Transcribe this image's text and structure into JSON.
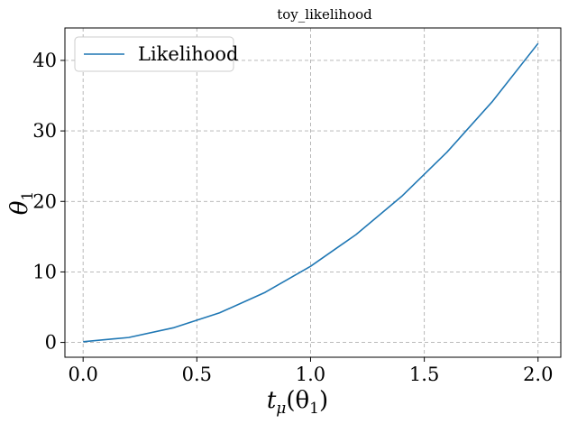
{
  "chart_data": {
    "type": "line",
    "title": "toy_likelihood",
    "xlabel": "t_μ(θ_1)",
    "ylabel": "θ_1",
    "xlabel_parts": {
      "base": "t",
      "sub": "μ",
      "arg_open": "(θ",
      "arg_sub": "1",
      "arg_close": ")"
    },
    "ylabel_parts": {
      "base": "θ",
      "sub": "1"
    },
    "xlim": [
      -0.08,
      2.1
    ],
    "ylim": [
      -2.1,
      44.6
    ],
    "xticks": [
      0.0,
      0.5,
      1.0,
      1.5,
      2.0
    ],
    "xtick_labels": [
      "0.0",
      "0.5",
      "1.0",
      "1.5",
      "2.0"
    ],
    "yticks": [
      0,
      10,
      20,
      30,
      40
    ],
    "ytick_labels": [
      "0",
      "10",
      "20",
      "30",
      "40"
    ],
    "grid": true,
    "grid_style": "dashed",
    "legend_position": "upper-left",
    "series": [
      {
        "name": "Likelihood",
        "color": "#1f77b4",
        "x": [
          0.0,
          0.2,
          0.4,
          0.6,
          0.8,
          1.0,
          1.2,
          1.4,
          1.6,
          1.8,
          2.0
        ],
        "y": [
          0.1,
          0.7,
          2.1,
          4.2,
          7.1,
          10.8,
          15.3,
          20.7,
          27.0,
          34.2,
          42.4
        ]
      }
    ]
  }
}
